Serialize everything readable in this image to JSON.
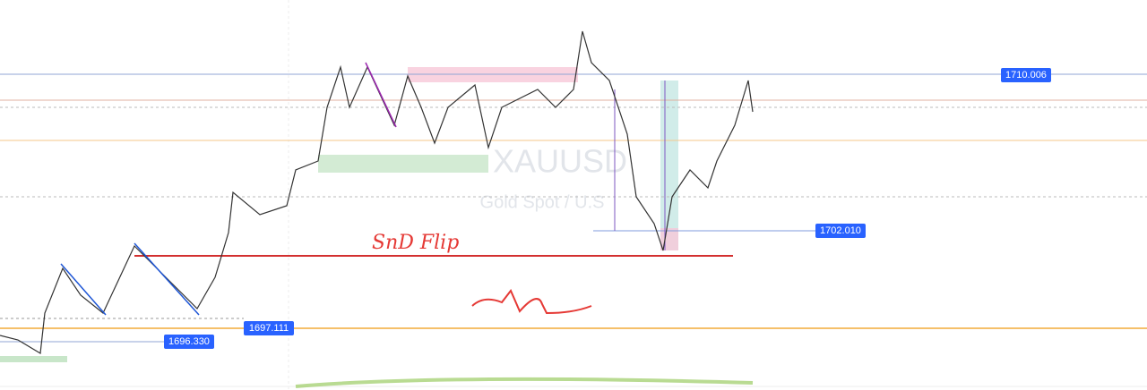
{
  "watermark": {
    "symbol": "XAUUSD",
    "description": "Gold Spot / U.S"
  },
  "price_labels": [
    "1710.006",
    "1702.010",
    "1697.111",
    "1696.330"
  ],
  "annotation": "SnD Flip"
}
